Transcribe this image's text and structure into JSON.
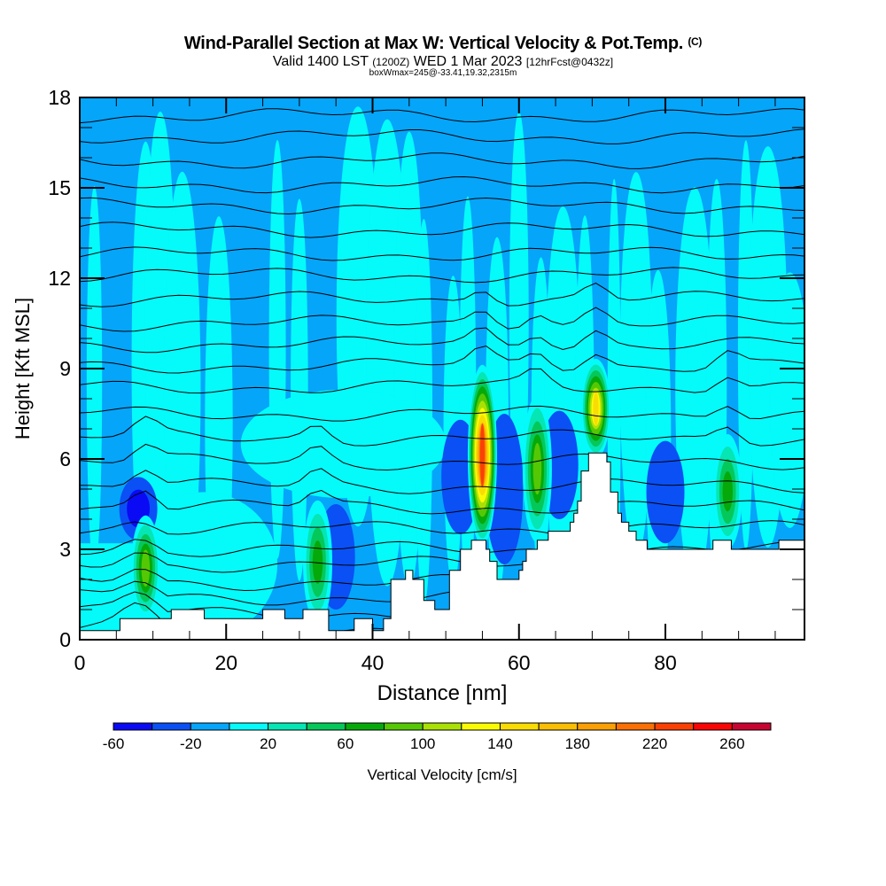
{
  "header": {
    "title": "Wind-Parallel Section at Max W: Vertical Velocity & Pot.Temp.",
    "copyright": "(C)",
    "valid_prefix": "Valid 1400 LST",
    "valid_utc": "(1200Z)",
    "valid_date": "WED 1 Mar 2023",
    "forecast": "[12hrFcst@0432z]",
    "boxwmax": "boxWmax=245@-33.41,19.32,2315m"
  },
  "chart_data": {
    "type": "heatmap",
    "title": "Wind-Parallel Section at Max W: Vertical Velocity & Pot.Temp.",
    "xlabel": "Distance [nm]",
    "ylabel": "Height [Kft MSL]",
    "xlim": [
      0,
      99
    ],
    "ylim": [
      0,
      18
    ],
    "xticks": [
      0,
      20,
      40,
      60,
      80
    ],
    "xtick_labels": [
      "0",
      "20",
      "40",
      "60",
      "80"
    ],
    "yticks": [
      0,
      3,
      6,
      9,
      12,
      15,
      18
    ],
    "ytick_labels": [
      "0",
      "3",
      "6",
      "9",
      "12",
      "15",
      "18"
    ],
    "colorbar": {
      "label": "Vertical Velocity [cm/s]",
      "boundaries": [
        -60,
        -40,
        -20,
        0,
        20,
        40,
        60,
        80,
        100,
        120,
        140,
        160,
        180,
        200,
        220,
        240,
        260,
        280
      ],
      "tick_values": [
        -60,
        -20,
        20,
        60,
        100,
        140,
        180,
        220,
        260
      ],
      "tick_labels": [
        "-60",
        "-20",
        "20",
        "60",
        "100",
        "140",
        "180",
        "220",
        "260"
      ],
      "colors": [
        "#0a0af5",
        "#0a50f5",
        "#05a5fa",
        "#05fafa",
        "#05e6b4",
        "#05c85a",
        "#05aa0a",
        "#55c805",
        "#aae105",
        "#fafa05",
        "#fadc05",
        "#fabe05",
        "#faa005",
        "#fa7005",
        "#fa4005",
        "#fa0505",
        "#c80532"
      ]
    },
    "background_w": -10,
    "terrain_kft": [
      [
        0,
        0.3
      ],
      [
        5.5,
        0.7
      ],
      [
        12.5,
        1.0
      ],
      [
        17,
        0.7
      ],
      [
        25,
        1.0
      ],
      [
        28,
        0.7
      ],
      [
        30.5,
        1.0
      ],
      [
        34,
        0.3
      ],
      [
        37.5,
        0.7
      ],
      [
        40,
        0.3
      ],
      [
        41.5,
        0.7
      ],
      [
        42.5,
        2.0
      ],
      [
        44.5,
        2.3
      ],
      [
        45.5,
        2.0
      ],
      [
        47,
        1.3
      ],
      [
        48.5,
        1.0
      ],
      [
        50,
        1.0
      ],
      [
        50.5,
        2.3
      ],
      [
        51.5,
        2.3
      ],
      [
        52,
        3.0
      ],
      [
        53.5,
        3.3
      ],
      [
        55.5,
        3.0
      ],
      [
        56,
        2.6
      ],
      [
        57,
        2.0
      ],
      [
        60,
        2.3
      ],
      [
        60.5,
        2.6
      ],
      [
        61,
        3.0
      ],
      [
        62.5,
        3.3
      ],
      [
        64,
        3.6
      ],
      [
        67,
        3.9
      ],
      [
        67.5,
        4.2
      ],
      [
        68,
        4.6
      ],
      [
        68.5,
        5.6
      ],
      [
        69.5,
        6.2
      ],
      [
        72,
        5.9
      ],
      [
        72.5,
        4.9
      ],
      [
        73.5,
        4.2
      ],
      [
        74,
        3.9
      ],
      [
        75,
        3.6
      ],
      [
        76,
        3.3
      ],
      [
        77.5,
        3.0
      ],
      [
        82,
        3.0
      ],
      [
        86.5,
        3.3
      ],
      [
        89,
        3.0
      ],
      [
        95,
        3.0
      ],
      [
        95.5,
        3.3
      ],
      [
        99,
        3.3
      ]
    ],
    "updrafts": [
      {
        "x": 55,
        "top_kft": 9.3,
        "base_kft": 3.3,
        "peak_w": 245
      },
      {
        "x": 70.5,
        "top_kft": 9.5,
        "base_kft": 6.2,
        "peak_w": 160
      },
      {
        "x": 62.5,
        "top_kft": 8.3,
        "base_kft": 3.4,
        "peak_w": 90
      },
      {
        "x": 9,
        "top_kft": 4.3,
        "base_kft": 0.8,
        "peak_w": 90
      },
      {
        "x": 32.5,
        "top_kft": 4.8,
        "base_kft": 0.7,
        "peak_w": 70
      },
      {
        "x": 88.5,
        "top_kft": 7.0,
        "base_kft": 3.2,
        "peak_w": 80
      }
    ],
    "downdrafts": [
      {
        "x": 8,
        "top_kft": 5.4,
        "base_kft": 3.3,
        "min_w": -50
      },
      {
        "x": 35,
        "top_kft": 4.5,
        "base_kft": 1.0,
        "min_w": -35
      },
      {
        "x": 58,
        "top_kft": 7.5,
        "base_kft": 2.5,
        "min_w": -45
      },
      {
        "x": 65.5,
        "top_kft": 7.6,
        "base_kft": 4.0,
        "min_w": -35
      },
      {
        "x": 80,
        "top_kft": 6.6,
        "base_kft": 3.2,
        "min_w": -40
      },
      {
        "x": 52,
        "top_kft": 7.3,
        "base_kft": 3.5,
        "min_w": -40
      }
    ],
    "theta_contour_heights_kft": [
      0.4,
      0.9,
      1.4,
      1.9,
      2.5,
      3.0,
      3.7,
      4.4,
      5.1,
      5.9,
      6.7,
      7.5,
      8.4,
      9.1,
      9.8,
      10.5,
      11.3,
      12.1,
      12.8,
      13.6,
      14.4,
      15.1,
      15.9,
      16.7,
      17.4
    ]
  }
}
